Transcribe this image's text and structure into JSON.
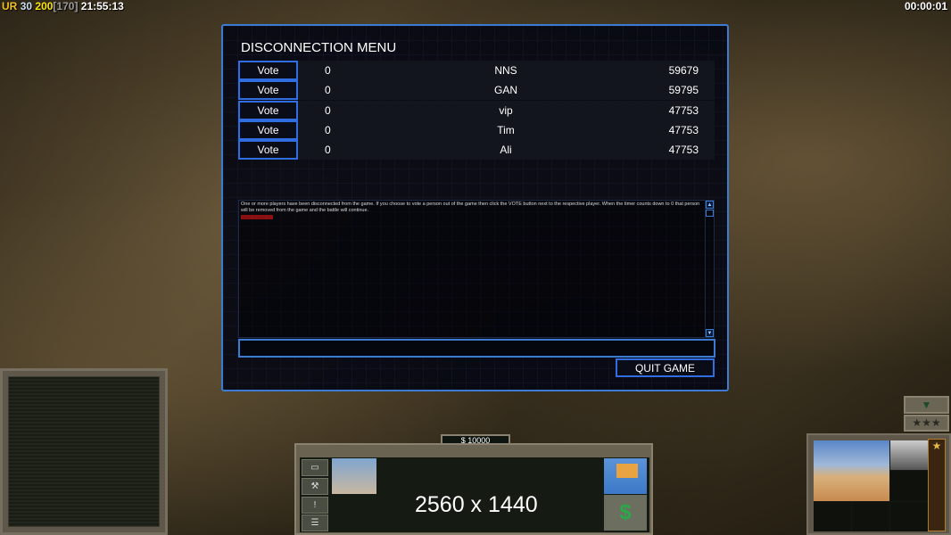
{
  "hud": {
    "prefix": "UR",
    "p1": "30",
    "p2": "200",
    "p3": "[170]",
    "clock": "21:55:13",
    "timer": "00:00:01"
  },
  "dialog": {
    "title": "DISCONNECTION MENU",
    "players": [
      {
        "vote": "Vote",
        "count": "0",
        "name": "NNS",
        "ping": "59679"
      },
      {
        "vote": "Vote",
        "count": "0",
        "name": "GAN",
        "ping": "59795"
      },
      {
        "vote": "Vote",
        "count": "0",
        "name": "vip",
        "ping": "47753"
      },
      {
        "vote": "Vote",
        "count": "0",
        "name": "Tim",
        "ping": "47753"
      },
      {
        "vote": "Vote",
        "count": "0",
        "name": "Ali",
        "ping": "47753"
      }
    ],
    "message": "One or more players have been disconnected from the game. If you choose to vote a person out of the game then click the VOTE button next to the respective player. When the timer counts down to 0 that person will be removed from the game and the battle will continue.",
    "chat_value": "",
    "quit_label": "QUIT GAME"
  },
  "command_bar": {
    "money": "$ 10000",
    "resolution": "2560 x 1440",
    "cash_icon": "$"
  },
  "colors": {
    "accent": "#3b7bd1",
    "money_yellow": "#ffe600"
  }
}
